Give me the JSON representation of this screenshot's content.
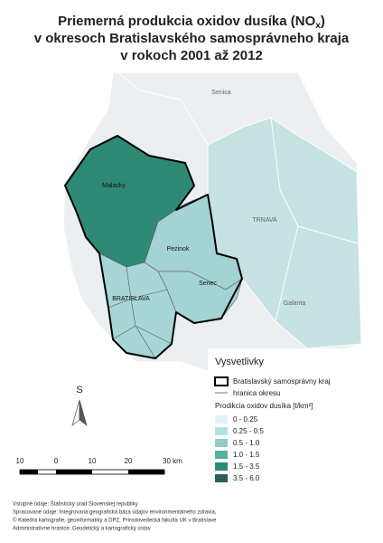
{
  "title": {
    "line1": "Priemerná produkcia oxidov dusíka (NO",
    "line1_sub": "x",
    "line1_end": ")",
    "line2": "v okresoch Bratislavského samosprávneho kraja",
    "line3": "v rokoch 2001 až 2012"
  },
  "map_labels": [
    "Senica",
    "Malacky",
    "TRNAVA",
    "Pezinok",
    "Senec",
    "BRATISLAVA",
    "Galanta"
  ],
  "legend": {
    "title": "Vysvetlivky",
    "region_boundary": "Bratislavský samosprávny kraj",
    "district_boundary": "hranica okresu",
    "scale_title": "Prodikcia oxidov dusíka [t/km²]",
    "classes": [
      {
        "label": "0 - 0.25",
        "color": "#dff3f6"
      },
      {
        "label": "0.25 - 0.5",
        "color": "#b5e0e2"
      },
      {
        "label": "0.5 - 1.0",
        "color": "#8fcbc9"
      },
      {
        "label": "1.0 - 1.5",
        "color": "#5aaf9f"
      },
      {
        "label": "1.5 - 3.5",
        "color": "#2f8a75"
      },
      {
        "label": "3.5 - 6.0",
        "color": "#2d5f58"
      }
    ]
  },
  "north_arrow": "S",
  "scale_bar": [
    "10",
    "0",
    "10",
    "20",
    "30 km"
  ],
  "footer": [
    "Vstupné údaje: Štatistický úrad Slovenskej republiky",
    "Spracované údaje: Integrovaná geografická báza údajov environmentálneho zdravia,",
    "© Katedra kartografie, geoinformatiky a DPZ, Prírodovedecká fakulta UK v Bratislave",
    "Administratívne hranice: Geodetický a kartografický ústav"
  ]
}
